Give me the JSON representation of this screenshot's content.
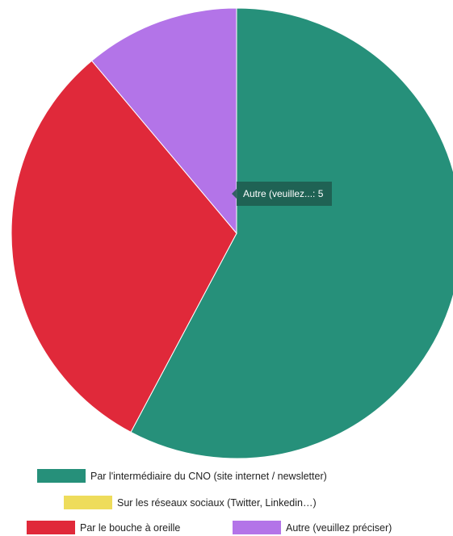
{
  "chart_data": {
    "type": "pie",
    "categories": [
      "Par l'intermédiaire du CNO (site internet / newsletter)",
      "Sur les réseaux sociaux (Twitter, Linkedin…)",
      "Par le bouche à oreille",
      "Autre (veuillez préciser)"
    ],
    "values": [
      26,
      0,
      14,
      5
    ],
    "colors": [
      "#26907a",
      "#eedc5b",
      "#e0293a",
      "#b374e8"
    ],
    "legend_position": "bottom",
    "tooltip": {
      "label": "Autre (veuillez...",
      "value": "5",
      "text": "Autre (veuillez...: 5"
    }
  }
}
